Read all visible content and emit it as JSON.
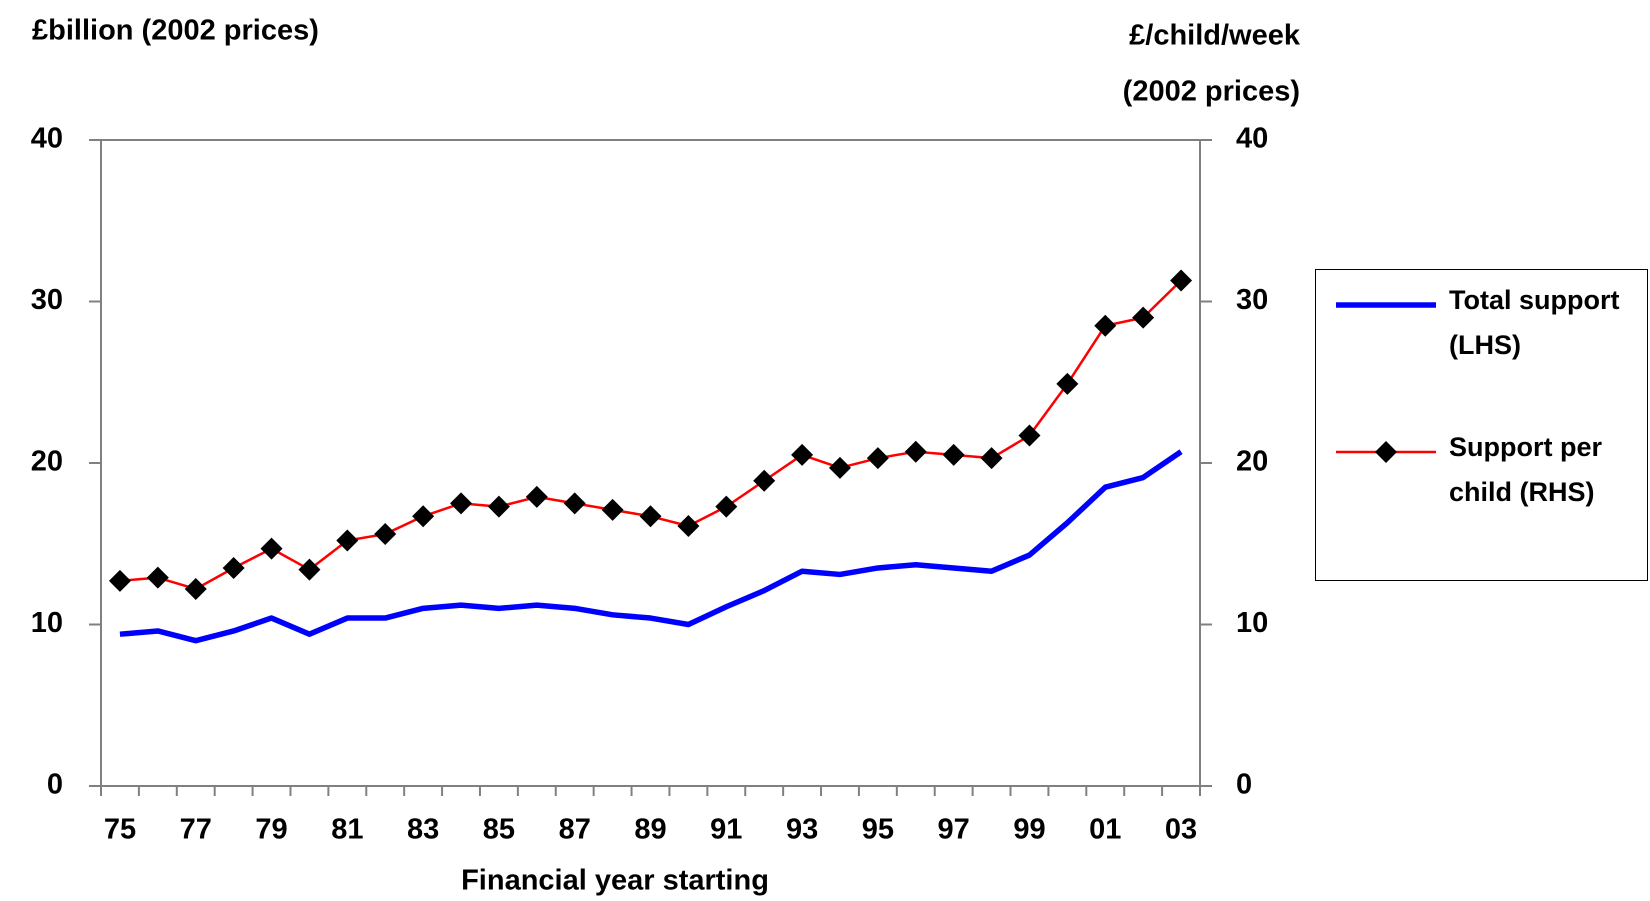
{
  "chart_data": {
    "type": "line",
    "ylabel": "£billion (2002 prices)",
    "y2label": [
      "£/child/week",
      "(2002 prices)"
    ],
    "xlabel": "Financial year starting",
    "categories": [
      "75",
      null,
      "77",
      null,
      "79",
      null,
      "81",
      null,
      "83",
      null,
      "85",
      null,
      "87",
      null,
      "89",
      null,
      "91",
      null,
      "93",
      null,
      "95",
      null,
      "97",
      null,
      "99",
      null,
      "01",
      null,
      "03"
    ],
    "series": [
      {
        "name": "Total support (LHS)",
        "color": "#0000ff",
        "axis": "y",
        "values": [
          9.4,
          9.6,
          9.0,
          9.6,
          10.4,
          9.4,
          10.4,
          10.4,
          11.0,
          11.2,
          11.0,
          11.2,
          11.0,
          10.6,
          10.4,
          10.0,
          11.1,
          12.1,
          13.3,
          13.1,
          13.5,
          13.7,
          13.5,
          13.3,
          14.3,
          16.3,
          18.5,
          19.1,
          20.7
        ]
      },
      {
        "name": "Support per child (RHS)",
        "color": "#ff0000",
        "axis": "y2",
        "marker": "diamond",
        "values": [
          12.7,
          12.9,
          12.2,
          13.5,
          14.7,
          13.4,
          15.2,
          15.6,
          16.7,
          17.5,
          17.3,
          17.9,
          17.5,
          17.1,
          16.7,
          16.1,
          17.3,
          18.9,
          20.5,
          19.7,
          20.3,
          20.7,
          20.5,
          20.3,
          21.7,
          24.9,
          28.5,
          29.0,
          31.3
        ]
      }
    ],
    "ylim": [
      0,
      40
    ],
    "yticks": [
      0,
      10,
      20,
      30,
      40
    ],
    "y2lim": [
      0,
      40
    ],
    "y2ticks": [
      0,
      10,
      20,
      30,
      40
    ],
    "grid": false,
    "legend": "right"
  }
}
